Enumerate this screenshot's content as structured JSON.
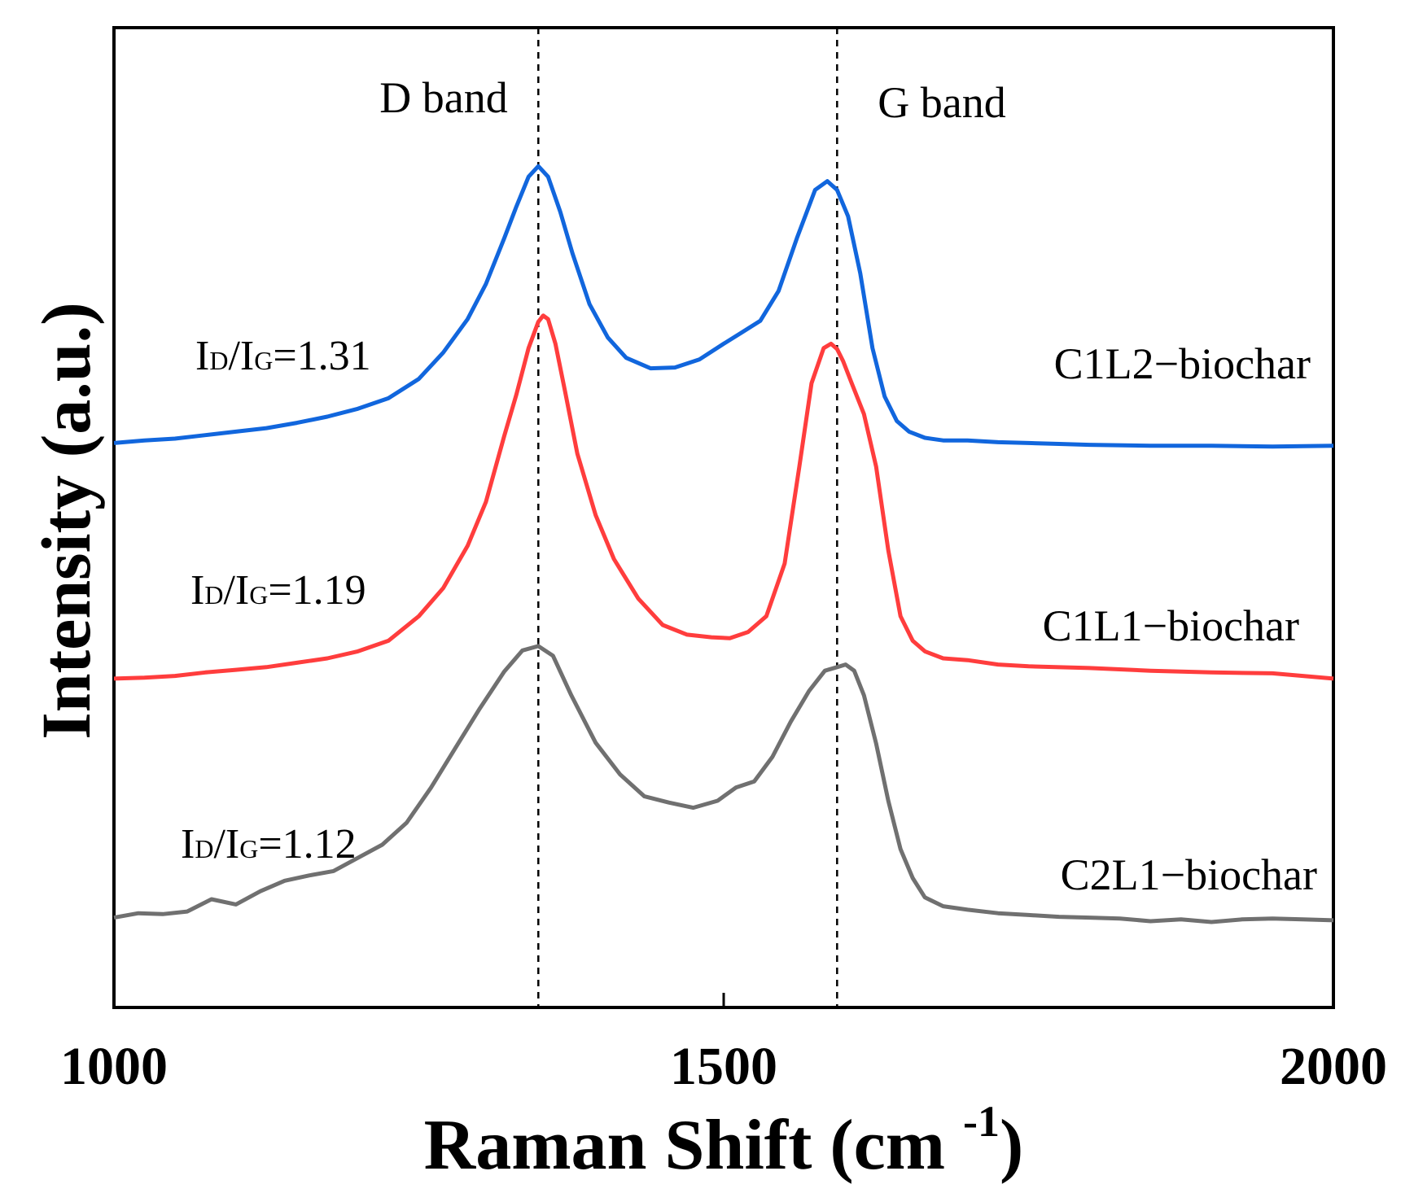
{
  "chart_data": {
    "type": "line",
    "title": "",
    "xlabel": "Raman Shift (cm",
    "xlabel_superscript": "-1",
    "xlabel_close": ")",
    "ylabel": "Intensity (a.u.)",
    "xlim": [
      1000,
      2000
    ],
    "ylim": [
      0,
      100
    ],
    "xticks": [
      "1000",
      "1500",
      "2000"
    ],
    "yticks_shown": false,
    "vlines": [
      {
        "name": "D band",
        "x": 1348
      },
      {
        "name": "G band",
        "x": 1593
      }
    ],
    "band_labels": {
      "d": "D band",
      "g": "G band"
    },
    "series": [
      {
        "name": "C1L2−biochar",
        "color": "#1166dd",
        "ratio_prefix_i": "I",
        "ratio_sub_d": "D",
        "ratio_sep": "/",
        "ratio_sub_g": "G",
        "ratio_value": "=1.31",
        "x": [
          1000,
          1025,
          1050,
          1075,
          1100,
          1125,
          1150,
          1175,
          1200,
          1225,
          1250,
          1270,
          1290,
          1305,
          1320,
          1330,
          1340,
          1348,
          1356,
          1366,
          1376,
          1390,
          1405,
          1420,
          1440,
          1460,
          1480,
          1500,
          1515,
          1530,
          1545,
          1560,
          1575,
          1585,
          1593,
          1602,
          1612,
          1622,
          1632,
          1642,
          1652,
          1665,
          1680,
          1700,
          1725,
          1750,
          1775,
          1800,
          1850,
          1900,
          1950,
          2000
        ],
        "y": [
          60.7,
          61.0,
          61.2,
          61.6,
          62.0,
          62.4,
          63.0,
          63.7,
          64.6,
          65.8,
          68.0,
          71.0,
          74.8,
          78.8,
          84.0,
          87.6,
          91.0,
          92.2,
          91.0,
          87.0,
          82.3,
          76.5,
          72.7,
          70.4,
          69.2,
          69.3,
          70.2,
          72.0,
          73.3,
          74.6,
          78.0,
          84.0,
          89.5,
          90.5,
          89.5,
          86.5,
          80.0,
          71.5,
          66.0,
          63.2,
          62.0,
          61.3,
          61.0,
          61.0,
          60.8,
          60.7,
          60.6,
          60.5,
          60.4,
          60.4,
          60.3,
          60.4
        ]
      },
      {
        "name": "C1L1−biochar",
        "color": "#ff3d3d",
        "ratio_prefix_i": "I",
        "ratio_sub_d": "D",
        "ratio_sep": "/",
        "ratio_sub_g": "G",
        "ratio_value": "=1.19",
        "x": [
          1000,
          1025,
          1050,
          1075,
          1100,
          1125,
          1150,
          1175,
          1200,
          1225,
          1250,
          1270,
          1290,
          1305,
          1320,
          1330,
          1340,
          1348,
          1352,
          1356,
          1362,
          1370,
          1380,
          1395,
          1410,
          1430,
          1450,
          1470,
          1490,
          1505,
          1520,
          1535,
          1550,
          1562,
          1572,
          1582,
          1588,
          1593,
          1598,
          1605,
          1615,
          1625,
          1635,
          1645,
          1655,
          1665,
          1680,
          1700,
          1725,
          1750,
          1800,
          1850,
          1900,
          1950,
          2000
        ],
        "y": [
          33.9,
          34.0,
          34.2,
          34.6,
          34.9,
          35.2,
          35.7,
          36.2,
          37.0,
          38.2,
          41.0,
          44.2,
          49.0,
          54.0,
          61.5,
          66.2,
          71.5,
          74.5,
          75.2,
          74.8,
          72.0,
          66.5,
          59.5,
          52.5,
          47.5,
          43.0,
          40.0,
          38.9,
          38.6,
          38.5,
          39.2,
          41.0,
          47.0,
          58.0,
          67.5,
          71.5,
          72.0,
          71.4,
          70.0,
          67.5,
          64.0,
          58.0,
          48.5,
          41.0,
          38.2,
          37.0,
          36.2,
          36.0,
          35.5,
          35.3,
          35.1,
          34.8,
          34.6,
          34.5,
          33.9
        ]
      },
      {
        "name": "C2L1−biochar",
        "color": "#707070",
        "ratio_prefix_i": "I",
        "ratio_sub_d": "D",
        "ratio_sep": "/",
        "ratio_sub_g": "G",
        "ratio_value": "=1.12",
        "x": [
          1000,
          1020,
          1040,
          1060,
          1080,
          1100,
          1120,
          1140,
          1160,
          1180,
          1200,
          1220,
          1240,
          1260,
          1280,
          1300,
          1320,
          1335,
          1348,
          1360,
          1375,
          1395,
          1415,
          1435,
          1455,
          1475,
          1495,
          1510,
          1525,
          1540,
          1555,
          1570,
          1583,
          1593,
          1600,
          1607,
          1615,
          1625,
          1635,
          1645,
          1655,
          1665,
          1680,
          1700,
          1725,
          1750,
          1775,
          1800,
          1825,
          1850,
          1875,
          1900,
          1925,
          1950,
          1975,
          2000
        ],
        "y": [
          6.7,
          7.2,
          7.1,
          7.4,
          8.8,
          8.2,
          9.7,
          10.9,
          11.5,
          12.0,
          13.5,
          15.0,
          17.5,
          21.5,
          26.0,
          30.5,
          34.7,
          37.1,
          37.6,
          36.5,
          32.0,
          26.6,
          23.0,
          20.5,
          19.8,
          19.2,
          20.0,
          21.5,
          22.2,
          25.0,
          29.0,
          32.5,
          34.8,
          35.2,
          35.5,
          34.8,
          32.0,
          26.5,
          20.0,
          14.5,
          11.2,
          9.0,
          8.0,
          7.6,
          7.2,
          7.0,
          6.8,
          6.7,
          6.6,
          6.3,
          6.5,
          6.2,
          6.5,
          6.6,
          6.5,
          6.4
        ]
      }
    ]
  }
}
